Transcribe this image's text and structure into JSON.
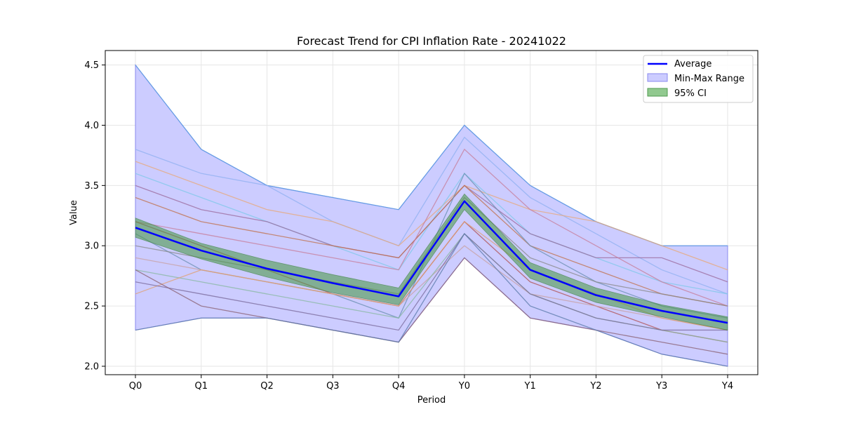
{
  "chart_data": {
    "type": "line",
    "title": "Forecast Trend for CPI Inflation Rate - 20241022",
    "xlabel": "Period",
    "ylabel": "Value",
    "categories": [
      "Q0",
      "Q1",
      "Q2",
      "Q3",
      "Q4",
      "Y0",
      "Y1",
      "Y2",
      "Y3",
      "Y4"
    ],
    "ylim": [
      1.93,
      4.62
    ],
    "yticks": [
      "2.0",
      "2.5",
      "3.0",
      "3.5",
      "4.0",
      "4.5"
    ],
    "grid": true,
    "legend_position": "top-right",
    "legend": [
      {
        "name": "Average",
        "kind": "line",
        "color": "#0000ff"
      },
      {
        "name": "Min-Max Range",
        "kind": "patch",
        "color": "#ccccff",
        "edge": "#8888ee"
      },
      {
        "name": "95% CI",
        "kind": "patch",
        "color": "#91c98f",
        "edge": "#4f9a4f"
      }
    ],
    "average": [
      3.15,
      2.96,
      2.81,
      2.69,
      2.58,
      3.37,
      2.8,
      2.59,
      2.46,
      2.36
    ],
    "ci_upper": [
      3.23,
      3.02,
      2.88,
      2.76,
      2.65,
      3.43,
      2.86,
      2.65,
      2.51,
      2.41
    ],
    "ci_lower": [
      3.07,
      2.89,
      2.74,
      2.61,
      2.51,
      3.3,
      2.73,
      2.53,
      2.41,
      2.3
    ],
    "range_max": [
      4.5,
      3.8,
      3.5,
      3.4,
      3.3,
      4.0,
      3.5,
      3.2,
      3.0,
      3.0
    ],
    "range_min": [
      2.3,
      2.4,
      2.4,
      2.3,
      2.2,
      2.9,
      2.4,
      2.3,
      2.1,
      2.0
    ],
    "forecasters": [
      {
        "color": "#5aa0e0",
        "values": [
          4.5,
          3.8,
          3.5,
          3.4,
          3.3,
          4.0,
          3.5,
          3.2,
          3.0,
          3.0
        ]
      },
      {
        "color": "#8fb0f0",
        "values": [
          3.8,
          3.6,
          3.5,
          3.2,
          3.0,
          3.9,
          3.4,
          3.1,
          2.8,
          2.6
        ]
      },
      {
        "color": "#e8a878",
        "values": [
          3.7,
          3.5,
          3.3,
          3.2,
          3.0,
          3.5,
          3.3,
          3.2,
          3.0,
          2.8
        ]
      },
      {
        "color": "#7ec8e8",
        "values": [
          3.6,
          3.4,
          3.2,
          3.0,
          2.8,
          3.6,
          3.1,
          2.9,
          2.7,
          2.6
        ]
      },
      {
        "color": "#9b6a9b",
        "values": [
          3.5,
          3.3,
          3.2,
          3.0,
          2.9,
          3.5,
          3.1,
          2.9,
          2.9,
          2.7
        ]
      },
      {
        "color": "#c0704a",
        "values": [
          3.4,
          3.2,
          3.1,
          3.0,
          2.9,
          3.5,
          3.0,
          2.8,
          2.6,
          2.5
        ]
      },
      {
        "color": "#c77d99",
        "values": [
          3.2,
          3.1,
          3.0,
          2.9,
          2.8,
          3.8,
          3.3,
          3.0,
          2.7,
          2.5
        ]
      },
      {
        "color": "#b05050",
        "values": [
          3.2,
          3.0,
          2.8,
          2.6,
          2.5,
          3.2,
          2.7,
          2.5,
          2.3,
          2.2
        ]
      },
      {
        "color": "#6a8fb0",
        "values": [
          3.1,
          2.8,
          2.7,
          2.6,
          2.4,
          3.6,
          3.0,
          2.7,
          2.5,
          2.4
        ]
      },
      {
        "color": "#8a8a8a",
        "values": [
          3.0,
          2.9,
          2.8,
          2.7,
          2.6,
          3.4,
          2.9,
          2.7,
          2.6,
          2.5
        ]
      },
      {
        "color": "#c8a0a0",
        "values": [
          2.9,
          2.8,
          2.7,
          2.6,
          2.5,
          3.0,
          2.6,
          2.5,
          2.4,
          2.3
        ]
      },
      {
        "color": "#88b8a0",
        "values": [
          2.8,
          2.7,
          2.6,
          2.5,
          2.4,
          3.1,
          2.6,
          2.4,
          2.3,
          2.2
        ]
      },
      {
        "color": "#e0a070",
        "values": [
          2.6,
          2.8,
          2.7,
          2.6,
          2.5,
          3.2,
          2.8,
          2.6,
          2.4,
          2.3
        ]
      },
      {
        "color": "#7a6a9a",
        "values": [
          2.7,
          2.6,
          2.5,
          2.4,
          2.3,
          3.1,
          2.6,
          2.4,
          2.3,
          2.3
        ]
      },
      {
        "color": "#8a6070",
        "values": [
          2.8,
          2.5,
          2.4,
          2.3,
          2.2,
          2.9,
          2.4,
          2.3,
          2.2,
          2.1
        ]
      },
      {
        "color": "#5a7aa8",
        "values": [
          2.3,
          2.4,
          2.4,
          2.3,
          2.2,
          3.1,
          2.5,
          2.3,
          2.1,
          2.0
        ]
      }
    ]
  }
}
